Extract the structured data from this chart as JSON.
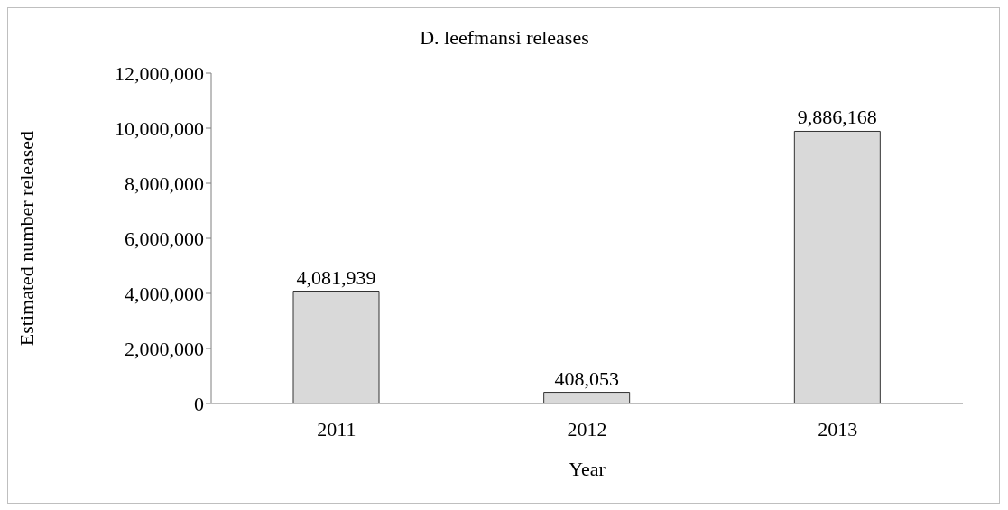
{
  "chart_data": {
    "type": "bar",
    "title": "D. leefmansi releases",
    "xlabel": "Year",
    "ylabel": "Estimated number released",
    "categories": [
      "2011",
      "2012",
      "2013"
    ],
    "values": [
      4081939,
      408053,
      9886168
    ],
    "color": "#d9d9d9",
    "value_labels": [
      "4,081,939",
      "408,053",
      "9,886,168"
    ],
    "ylim": [
      0,
      12000000
    ],
    "yticks": [
      0,
      {
        "value": 2000000,
        "label": "2,000,000"
      },
      {
        "value": 4000000,
        "label": "4,000,000"
      },
      {
        "value": 6000000,
        "label": "6,000,000"
      },
      {
        "value": 8000000,
        "label": "8,000,000"
      },
      {
        "value": 10000000,
        "label": "10,000,000"
      },
      {
        "value": 12000000,
        "label": "12,000,000"
      }
    ],
    "grid": false,
    "legend": false
  }
}
